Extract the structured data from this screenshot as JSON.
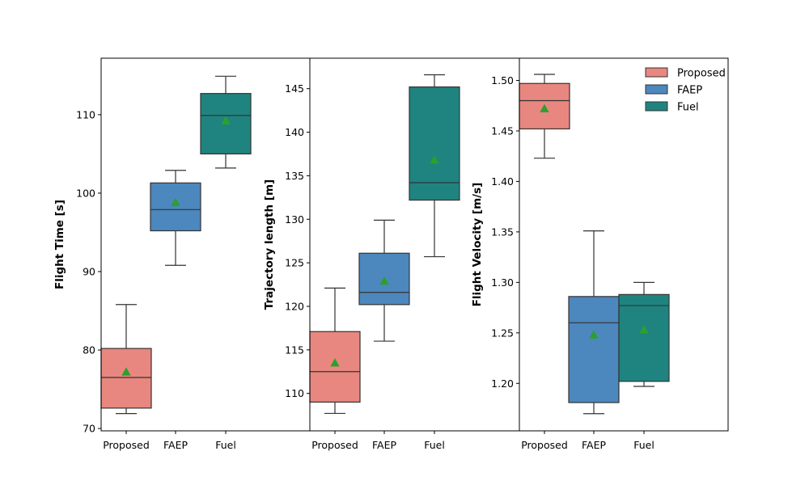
{
  "chart_data": [
    {
      "type": "box",
      "ylabel": "Flight Time [s]",
      "categories": [
        "Proposed",
        "FAEP",
        "Fuel"
      ],
      "ylim": [
        69.7,
        117.2
      ],
      "yticks": [
        70,
        80,
        90,
        100,
        110
      ],
      "boxes": [
        {
          "category": "Proposed",
          "min": 71.9,
          "q1": 72.6,
          "median": 76.5,
          "q3": 80.2,
          "max": 85.8,
          "mean": 77.2
        },
        {
          "category": "FAEP",
          "min": 90.8,
          "q1": 95.2,
          "median": 97.9,
          "q3": 101.3,
          "max": 102.9,
          "mean": 98.8
        },
        {
          "category": "Fuel",
          "min": 103.2,
          "q1": 105.0,
          "median": 109.9,
          "q3": 112.7,
          "max": 114.9,
          "mean": 109.2
        }
      ]
    },
    {
      "type": "box",
      "ylabel": "Trajectory length [m]",
      "categories": [
        "Proposed",
        "FAEP",
        "Fuel"
      ],
      "ylim": [
        105.7,
        148.5
      ],
      "yticks": [
        110,
        115,
        120,
        125,
        130,
        135,
        140,
        145
      ],
      "boxes": [
        {
          "category": "Proposed",
          "min": 107.7,
          "q1": 109.0,
          "median": 112.5,
          "q3": 117.1,
          "max": 122.1,
          "mean": 113.5
        },
        {
          "category": "FAEP",
          "min": 116.0,
          "q1": 120.2,
          "median": 121.6,
          "q3": 126.1,
          "max": 129.9,
          "mean": 122.9
        },
        {
          "category": "Fuel",
          "min": 125.7,
          "q1": 132.2,
          "median": 134.2,
          "q3": 145.2,
          "max": 146.6,
          "mean": 136.8
        }
      ]
    },
    {
      "type": "box",
      "ylabel": "Flight Velocity [m/s]",
      "categories": [
        "Proposed",
        "FAEP",
        "Fuel"
      ],
      "ylim": [
        1.153,
        1.522
      ],
      "yticks": [
        "1.20",
        "1.25",
        "1.30",
        "1.35",
        "1.40",
        "1.45",
        "1.50"
      ],
      "boxes": [
        {
          "category": "Proposed",
          "min": 1.423,
          "q1": 1.452,
          "median": 1.48,
          "q3": 1.497,
          "max": 1.506,
          "mean": 1.472
        },
        {
          "category": "FAEP",
          "min": 1.17,
          "q1": 1.181,
          "median": 1.26,
          "q3": 1.286,
          "max": 1.351,
          "mean": 1.248
        },
        {
          "category": "Fuel",
          "min": 1.197,
          "q1": 1.202,
          "median": 1.277,
          "q3": 1.288,
          "max": 1.3,
          "mean": 1.253
        }
      ],
      "legend": {
        "placement": "top-right",
        "entries": [
          "Proposed",
          "FAEP",
          "Fuel"
        ]
      }
    }
  ],
  "colors": {
    "Proposed": "#e8877f",
    "FAEP": "#4c87bd",
    "Fuel": "#1f8480",
    "mean_marker": "#2ca02c",
    "edge": "#333333"
  }
}
